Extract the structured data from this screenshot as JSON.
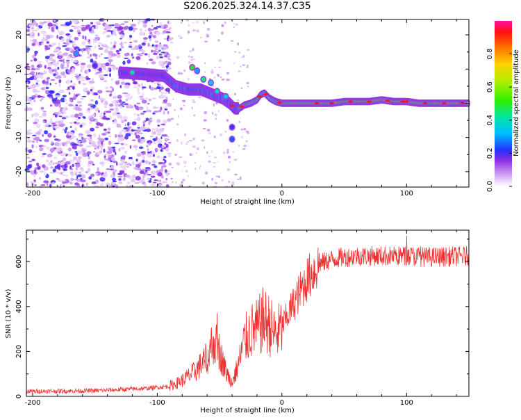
{
  "title": "S206.2025.324.14.37.C35",
  "chart_data": [
    {
      "type": "heatmap",
      "name": "spectrogram",
      "xlabel": "Height of straight line (km)",
      "ylabel": "Frequency (Hz)",
      "xlim": [
        -205,
        150
      ],
      "ylim": [
        -24.5,
        24.5
      ],
      "xticks": [
        "-200",
        "-100",
        "0",
        "100"
      ],
      "xtick_values": [
        -200,
        -100,
        0,
        100
      ],
      "yticks": [
        "20",
        "10",
        "0",
        "-10",
        "-20"
      ],
      "ytick_values": [
        20,
        10,
        0,
        -10,
        -20
      ],
      "colorbar": {
        "label": "Normalized spectral amplitude",
        "range": [
          0,
          1
        ],
        "ticks": [
          "0.0",
          "0.2",
          "0.4",
          "0.6",
          "0.8"
        ],
        "tick_values": [
          0.0,
          0.2,
          0.4,
          0.6,
          0.8
        ]
      },
      "ridge": {
        "x": [
          -130,
          -110,
          -95,
          -85,
          -75,
          -65,
          -55,
          -48,
          -42,
          -38,
          -34,
          -30,
          -25,
          -20,
          -17,
          -14,
          -10,
          -5,
          0,
          10,
          20,
          30,
          40,
          50,
          60,
          70,
          80,
          90,
          100,
          110,
          120,
          130,
          140,
          150
        ],
        "y": [
          9,
          8.5,
          8,
          5,
          4,
          4,
          2.5,
          1.5,
          0,
          -1.5,
          -1.5,
          -0.5,
          0,
          1,
          2.5,
          3,
          1.5,
          0.5,
          0,
          0,
          0,
          0,
          0,
          0.5,
          0.5,
          0.5,
          1,
          0.5,
          0.5,
          0,
          0,
          0,
          0,
          0
        ]
      },
      "extra_blobs": [
        {
          "x": -72,
          "y": 10.5,
          "v": 0.5
        },
        {
          "x": -68,
          "y": 9.5,
          "v": 0.3
        },
        {
          "x": -63,
          "y": 7,
          "v": 0.45
        },
        {
          "x": -57,
          "y": 6,
          "v": 0.35
        },
        {
          "x": -52,
          "y": 3.5,
          "v": 0.4
        },
        {
          "x": -45,
          "y": 2,
          "v": 0.35
        },
        {
          "x": -40,
          "y": -7,
          "v": 0.2
        },
        {
          "x": -40,
          "y": -10.5,
          "v": 0.25
        },
        {
          "x": -165,
          "y": 14.5,
          "v": 0.3
        },
        {
          "x": -150,
          "y": 11,
          "v": 0.2
        },
        {
          "x": -120,
          "y": 9,
          "v": 0.4
        }
      ],
      "peak_markers": [
        -40,
        -32,
        -18,
        -13,
        -2,
        28,
        40,
        55,
        70,
        85,
        97,
        100,
        115,
        130,
        145
      ]
    },
    {
      "type": "line",
      "name": "snr",
      "xlabel": "Height of straight line (km)",
      "ylabel": "SNR (10 * v/v)",
      "xlim": [
        -205,
        150
      ],
      "ylim": [
        0,
        740
      ],
      "xticks": [
        "-200",
        "-100",
        "0",
        "100"
      ],
      "xtick_values": [
        -200,
        -100,
        0,
        100
      ],
      "yticks": [
        "600",
        "400",
        "200",
        "0"
      ],
      "ytick_values": [
        600,
        400,
        200,
        0
      ],
      "color": "#f03030",
      "trend": {
        "x": [
          -205,
          -150,
          -110,
          -90,
          -80,
          -70,
          -60,
          -55,
          -50,
          -45,
          -40,
          -35,
          -30,
          -25,
          -20,
          -15,
          -10,
          -5,
          0,
          10,
          20,
          30,
          40,
          50,
          60,
          80,
          100,
          120,
          150
        ],
        "y": [
          22,
          25,
          35,
          45,
          70,
          110,
          170,
          250,
          200,
          110,
          60,
          140,
          250,
          290,
          300,
          340,
          320,
          270,
          310,
          420,
          520,
          590,
          610,
          620,
          625,
          625,
          625,
          620,
          625
        ]
      }
    }
  ]
}
